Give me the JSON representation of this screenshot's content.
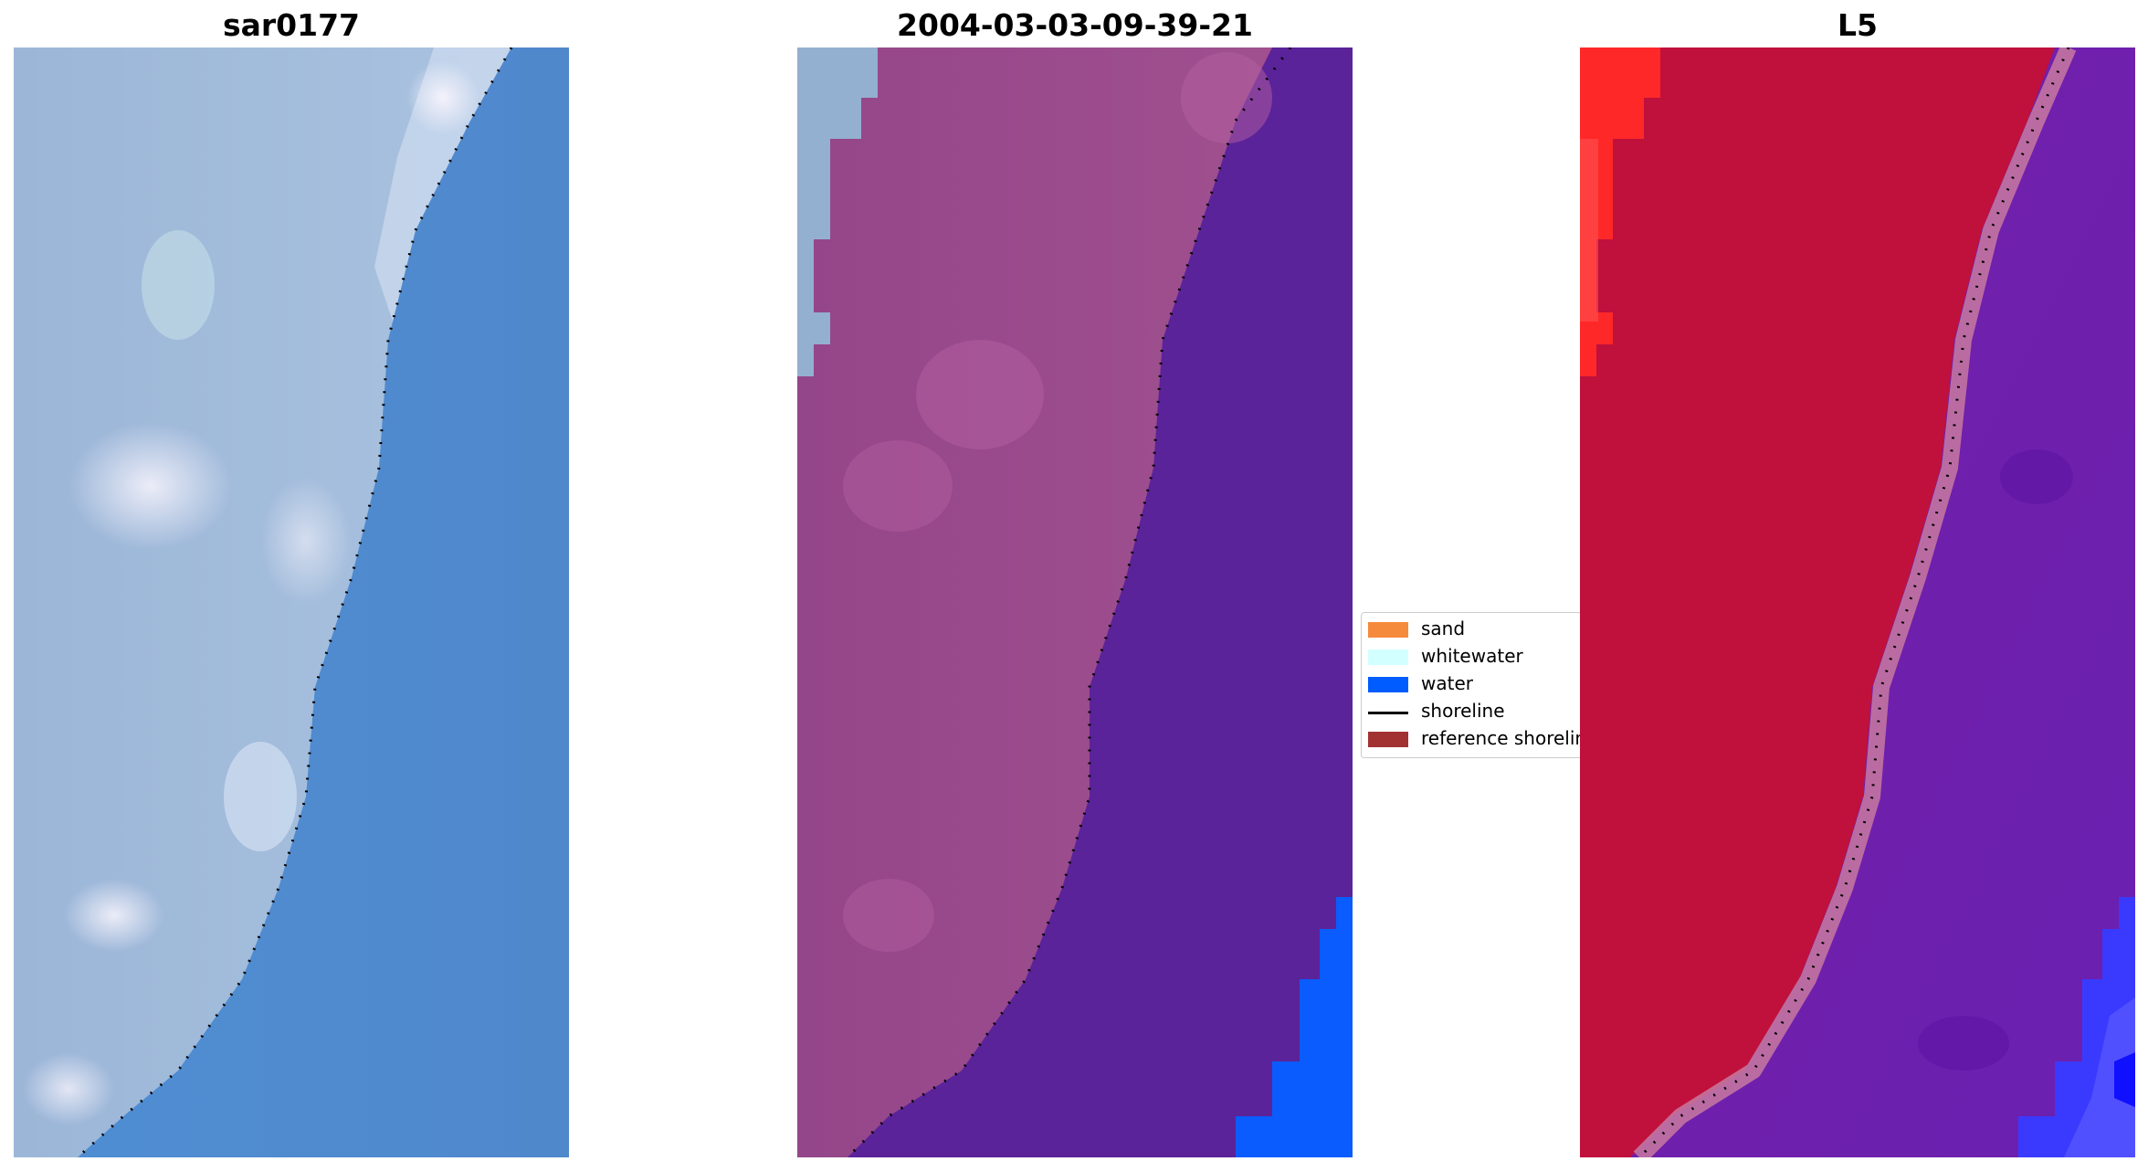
{
  "panels": [
    {
      "title": "sar0177"
    },
    {
      "title": "2004-03-03-09-39-21"
    },
    {
      "title": "L5"
    }
  ],
  "legend": {
    "items": [
      {
        "label": "sand",
        "color": "#f68a3c",
        "kind": "patch"
      },
      {
        "label": "whitewater",
        "color": "#d2ffff",
        "kind": "patch"
      },
      {
        "label": "water",
        "color": "#005cff",
        "kind": "patch"
      },
      {
        "label": "shoreline",
        "color": "#000000",
        "kind": "line"
      },
      {
        "label": "reference shoreline",
        "color": "#a23232",
        "kind": "patch"
      }
    ]
  }
}
